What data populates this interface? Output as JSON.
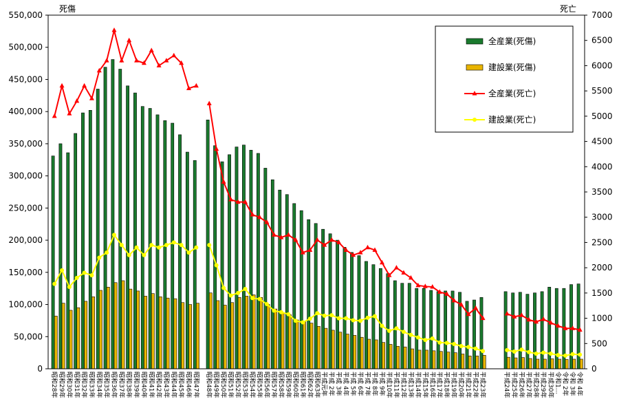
{
  "chart_data": {
    "type": "bar",
    "title": "",
    "left_axis_title": "死傷",
    "right_axis_title": "死亡",
    "left_ylim": [
      0,
      550000
    ],
    "left_ticks": [
      "0",
      "50,000",
      "100,000",
      "150,000",
      "200,000",
      "250,000",
      "300,000",
      "350,000",
      "400,000",
      "450,000",
      "500,000",
      "550,000"
    ],
    "right_ylim": [
      0,
      7000
    ],
    "right_ticks": [
      "0",
      "500",
      "1000",
      "1500",
      "2000",
      "2500",
      "3000",
      "3500",
      "4000",
      "4500",
      "5000",
      "5500",
      "6000",
      "6500",
      "7000"
    ],
    "legend_position": "top-right",
    "colors": {
      "all_injury": "#1a7a2e",
      "const_injury": "#e8b400",
      "all_death": "#ff0000",
      "const_death": "#ffff00"
    },
    "segments": [
      {
        "categories": [
          "昭和28年",
          "昭和29年",
          "昭和30年",
          "昭和31年",
          "昭和32年",
          "昭和33年",
          "昭和34年",
          "昭和35年",
          "昭和36年",
          "昭和37年",
          "昭和38年",
          "昭和39年",
          "昭和40年",
          "昭和41年",
          "昭和42年",
          "昭和43年",
          "昭和44年",
          "昭和45年",
          "昭和46年",
          "昭和47年"
        ],
        "all_injury": [
          331000,
          350000,
          336000,
          366000,
          398000,
          402000,
          435000,
          469000,
          481000,
          466000,
          440000,
          429000,
          408000,
          405000,
          395000,
          386000,
          382000,
          364000,
          337000,
          324000
        ],
        "const_injury": [
          82000,
          102000,
          91000,
          95000,
          105000,
          112000,
          122000,
          127000,
          134000,
          137000,
          124000,
          121000,
          113000,
          117000,
          112000,
          110000,
          109000,
          103000,
          100000,
          102000
        ],
        "all_death": [
          5000,
          5600,
          5050,
          5300,
          5600,
          5350,
          5900,
          6100,
          6700,
          6100,
          6500,
          6100,
          6050,
          6300,
          6000,
          6100,
          6200,
          6050,
          5550,
          5600
        ],
        "const_death": [
          1680,
          1950,
          1620,
          1800,
          1900,
          1850,
          2200,
          2300,
          2650,
          2450,
          2250,
          2400,
          2250,
          2450,
          2400,
          2450,
          2500,
          2450,
          2300,
          2400
        ]
      },
      {
        "categories": [
          "昭和48年",
          "昭和49年",
          "昭和50年",
          "昭和51年",
          "昭和52年",
          "昭和53年",
          "昭和54年",
          "昭和55年",
          "昭和56年",
          "昭和57年",
          "昭和58年",
          "昭和59年",
          "昭和60年",
          "昭和61年",
          "昭和62年",
          "昭和63年",
          "平成元年",
          "平成2年",
          "平成3年",
          "平成4年",
          "平成5年",
          "平成6年",
          "平成7年",
          "平成8年",
          "平成9年",
          "平成10年",
          "平成11年",
          "平成12年",
          "平成13年",
          "平成14年",
          "平成15年",
          "平成16年",
          "平成17年",
          "平成18年",
          "平成19年",
          "平成20年",
          "平成21年",
          "平成22年",
          "平成23年"
        ],
        "all_injury": [
          387000,
          347000,
          322000,
          333000,
          345000,
          348000,
          340000,
          335000,
          312000,
          294000,
          278000,
          271000,
          257000,
          246000,
          232000,
          226000,
          217000,
          210000,
          200000,
          189000,
          181000,
          176000,
          167000,
          162000,
          156000,
          148000,
          137000,
          133000,
          133000,
          125000,
          125000,
          122000,
          120000,
          121000,
          121000,
          119000,
          105000,
          107000,
          111000
        ],
        "const_injury": [
          118000,
          106000,
          99000,
          103000,
          111000,
          113000,
          115000,
          111000,
          100000,
          93000,
          87000,
          84000,
          76000,
          73000,
          71000,
          66000,
          63000,
          60000,
          57000,
          54000,
          52000,
          49000,
          46000,
          45000,
          41000,
          38000,
          35000,
          34000,
          31000,
          29000,
          29000,
          28000,
          27000,
          26000,
          25000,
          23000,
          20000,
          20000,
          21000
        ],
        "all_death": [
          5250,
          4350,
          3700,
          3350,
          3300,
          3300,
          3050,
          3000,
          2900,
          2650,
          2600,
          2650,
          2550,
          2300,
          2350,
          2550,
          2450,
          2550,
          2500,
          2350,
          2250,
          2300,
          2400,
          2350,
          2100,
          1850,
          2000,
          1900,
          1800,
          1650,
          1630,
          1620,
          1520,
          1480,
          1350,
          1270,
          1080,
          1200,
          1000
        ],
        "const_death": [
          2450,
          2050,
          1600,
          1450,
          1500,
          1580,
          1400,
          1380,
          1280,
          1150,
          1120,
          1080,
          950,
          920,
          990,
          1100,
          1050,
          1060,
          1000,
          1000,
          960,
          950,
          1010,
          1040,
          850,
          750,
          800,
          730,
          670,
          620,
          570,
          600,
          520,
          510,
          490,
          450,
          430,
          400,
          350
        ]
      },
      {
        "categories": [
          "平成24年",
          "平成25年",
          "平成26年",
          "平成27年",
          "平成28年",
          "平成29年",
          "平成30年",
          "令和元年",
          "令和2年",
          "令和3年",
          "令和4年"
        ],
        "all_injury": [
          120000,
          118000,
          119000,
          116000,
          118000,
          120000,
          127000,
          125000,
          125000,
          131000,
          132000
        ],
        "const_injury": [
          18000,
          17000,
          17500,
          16000,
          15000,
          15000,
          15500,
          15000,
          14500,
          15000,
          15000
        ],
        "all_death": [
          1090,
          1030,
          1060,
          970,
          930,
          980,
          910,
          850,
          800,
          800,
          770
        ],
        "const_death": [
          370,
          340,
          380,
          330,
          300,
          320,
          300,
          270,
          260,
          290,
          280
        ]
      }
    ],
    "x_labels": [
      "昭和28年",
      "昭和29年",
      "昭和30年",
      "昭和31年",
      "昭和32年",
      "昭和33年",
      "昭和34年",
      "昭和35年",
      "昭和36年",
      "昭和37年",
      "昭和38年",
      "昭和39年",
      "昭和40年",
      "昭和41年",
      "昭和42年",
      "昭和43年",
      "昭和44年",
      "昭和45年",
      "昭和46年",
      "昭和47年",
      "昭和48年",
      "昭和49年",
      "昭和50年",
      "昭和51年",
      "昭和52年",
      "昭和53年",
      "昭和54年",
      "昭和55年",
      "昭和56年",
      "昭和57年",
      "昭和58年",
      "昭和59年",
      "昭和60年",
      "昭和61年",
      "昭和62年",
      "昭和63年",
      "平成元年",
      "平成 2年",
      "平成 3年",
      "平成 4年",
      "平成 5年",
      "平成 6年",
      "平成 7年",
      "平成 8年",
      "平成 9年",
      "平成10年",
      "平成11年",
      "平成12年",
      "平成13年",
      "平成14年",
      "平成15年",
      "平成16年",
      "平成17年",
      "平成18年",
      "平成19年",
      "平成20年",
      "平成21年",
      "平成22年",
      "平成23年",
      "平成24年",
      "平成25年",
      "平成26年",
      "平成27年",
      "平成28年",
      "平成29年",
      "平成30年",
      "令和1…",
      "令和 2年",
      "令和 3年",
      "令和 4年"
    ],
    "series": [
      {
        "name": "全産業(死傷)",
        "key": "all_injury",
        "kind": "bar",
        "axis": "left"
      },
      {
        "name": "建設業(死傷)",
        "key": "const_injury",
        "kind": "bar",
        "axis": "left"
      },
      {
        "name": "全産業(死亡)",
        "key": "all_death",
        "kind": "line",
        "axis": "right",
        "marker": "triangle"
      },
      {
        "name": "建設業(死亡)",
        "key": "const_death",
        "kind": "line",
        "axis": "right",
        "marker": "circle"
      }
    ]
  }
}
